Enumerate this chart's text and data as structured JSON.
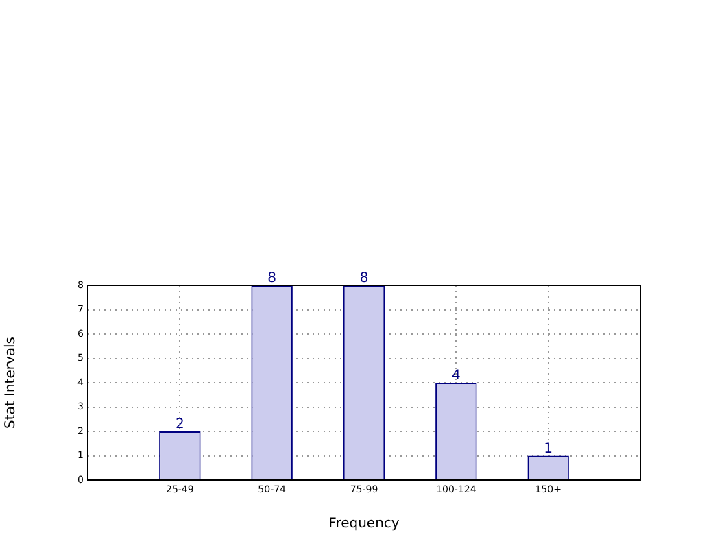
{
  "chart_data": {
    "type": "bar",
    "xlabel": "Frequency",
    "ylabel": "Stat Intervals",
    "categories": [
      "25-49",
      "50-74",
      "75-99",
      "100-124",
      "150+"
    ],
    "values": [
      2,
      8,
      8,
      4,
      1
    ],
    "color": "#ccccee",
    "data_labels": true,
    "ylim": [
      0,
      8
    ],
    "yticks": [
      0,
      1,
      2,
      3,
      4,
      5,
      6,
      7,
      8
    ],
    "grid": true
  }
}
